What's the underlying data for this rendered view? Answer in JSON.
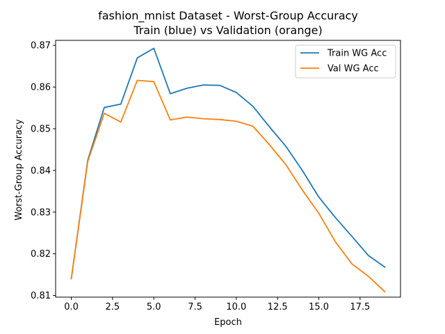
{
  "chart_data": {
    "type": "line",
    "title": "fashion_mnist Dataset - Worst-Group Accuracy",
    "subtitle": "Train (blue) vs Validation (orange)",
    "xlabel": "Epoch",
    "ylabel": "Worst-Group Accuracy",
    "xlim": [
      -0.95,
      19.95
    ],
    "ylim": [
      0.8096,
      0.8712
    ],
    "xticks": [
      0.0,
      2.5,
      5.0,
      7.5,
      10.0,
      12.5,
      15.0,
      17.5
    ],
    "xtick_labels": [
      "0.0",
      "2.5",
      "5.0",
      "7.5",
      "10.0",
      "12.5",
      "15.0",
      "17.5"
    ],
    "yticks": [
      0.81,
      0.82,
      0.83,
      0.84,
      0.85,
      0.86,
      0.87
    ],
    "ytick_labels": [
      "0.81",
      "0.82",
      "0.83",
      "0.84",
      "0.85",
      "0.86",
      "0.87"
    ],
    "grid": false,
    "legend_position": "top-right",
    "x": [
      0,
      1,
      2,
      3,
      4,
      5,
      6,
      7,
      8,
      9,
      10,
      11,
      12,
      13,
      14,
      15,
      16,
      17,
      18,
      19
    ],
    "series": [
      {
        "name": "Train WG Acc",
        "color": "#1f77b4",
        "values": [
          0.814,
          0.8425,
          0.8551,
          0.8559,
          0.867,
          0.8693,
          0.8584,
          0.8597,
          0.8605,
          0.8604,
          0.8587,
          0.8554,
          0.8505,
          0.8458,
          0.84,
          0.8336,
          0.8287,
          0.8242,
          0.8196,
          0.8168
        ]
      },
      {
        "name": "Val WG Acc",
        "color": "#ff7f0e",
        "values": [
          0.814,
          0.8422,
          0.8537,
          0.8516,
          0.8616,
          0.8613,
          0.8521,
          0.8528,
          0.8524,
          0.8522,
          0.8518,
          0.8506,
          0.8462,
          0.8414,
          0.8353,
          0.8297,
          0.8229,
          0.8176,
          0.8146,
          0.8109
        ]
      }
    ]
  }
}
